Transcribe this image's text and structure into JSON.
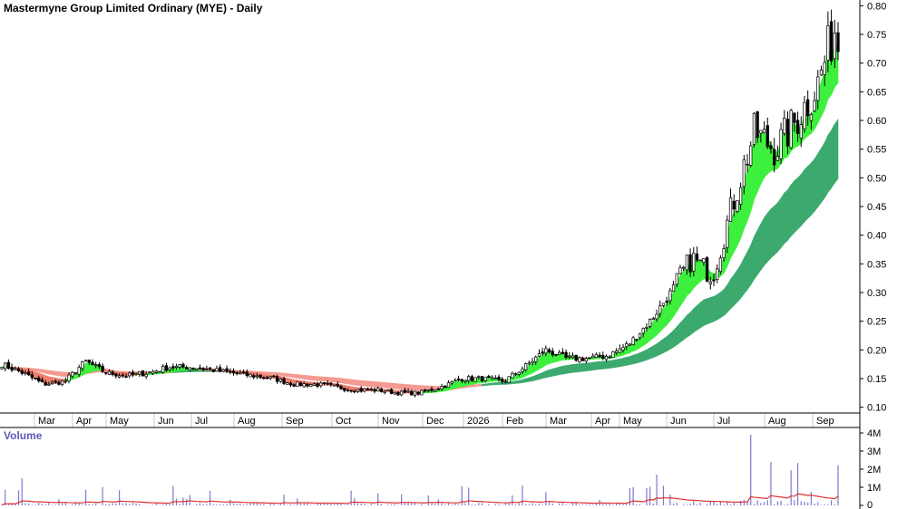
{
  "chart_data": {
    "type": "candlestick",
    "title": "Mastermyne Group Limited Ordinary (MYE) - Daily",
    "price_axis": {
      "ylim": [
        0.09,
        0.81
      ],
      "ticks": [
        "0.10",
        "0.15",
        "0.20",
        "0.25",
        "0.30",
        "0.35",
        "0.40",
        "0.45",
        "0.50",
        "0.55",
        "0.60",
        "0.65",
        "0.70",
        "0.75",
        "0.80"
      ]
    },
    "months": [
      {
        "label": "Mar",
        "i": 0
      },
      {
        "label": "Apr",
        "i": 1
      },
      {
        "label": "May",
        "i": 2
      },
      {
        "label": "Jun",
        "i": 3
      },
      {
        "label": "Jul",
        "i": 4
      },
      {
        "label": "Aug",
        "i": 5
      },
      {
        "label": "Sep",
        "i": 6
      },
      {
        "label": "Oct",
        "i": 7
      },
      {
        "label": "Nov",
        "i": 8
      },
      {
        "label": "Dec",
        "i": 9
      },
      {
        "label": "2026",
        "i": 10
      },
      {
        "label": "Feb",
        "i": 11
      },
      {
        "label": "Mar",
        "i": 12
      },
      {
        "label": "Apr",
        "i": 13
      },
      {
        "label": "May",
        "i": 14
      },
      {
        "label": "Jun",
        "i": 15
      },
      {
        "label": "Jul",
        "i": 16
      },
      {
        "label": "Aug",
        "i": 17
      },
      {
        "label": "Sep",
        "i": 18
      }
    ],
    "price_path": [
      0.175,
      0.16,
      0.14,
      0.145,
      0.18,
      0.16,
      0.155,
      0.16,
      0.17,
      0.17,
      0.165,
      0.16,
      0.155,
      0.15,
      0.14,
      0.14,
      0.135,
      0.13,
      0.13,
      0.125,
      0.125,
      0.135,
      0.15,
      0.15,
      0.145,
      0.17,
      0.2,
      0.185,
      0.185,
      0.19,
      0.21,
      0.25,
      0.3,
      0.36,
      0.33,
      0.46,
      0.58,
      0.55,
      0.6,
      0.66,
      0.78
    ],
    "volume_axis": {
      "ylim": [
        0,
        4000000
      ],
      "ticks": [
        {
          "label": "4M",
          "v": 4000000
        },
        {
          "label": "3M",
          "v": 3000000
        },
        {
          "label": "2M",
          "v": 2000000
        },
        {
          "label": "1M",
          "v": 1000000
        },
        {
          "label": "0",
          "v": 0
        }
      ]
    },
    "volume_label": "Volume",
    "colors": {
      "up_candle": "#000000",
      "down_candle": "#000000",
      "short_ma_up": "#3ef03e",
      "short_ma_down": "#f08070",
      "long_ma_up": "#3caa6e",
      "long_ma_down": "#f49a90",
      "volume_bar": "#7a7ad0",
      "volume_ma": "#e03030",
      "grid": "#c8c8c8"
    }
  }
}
